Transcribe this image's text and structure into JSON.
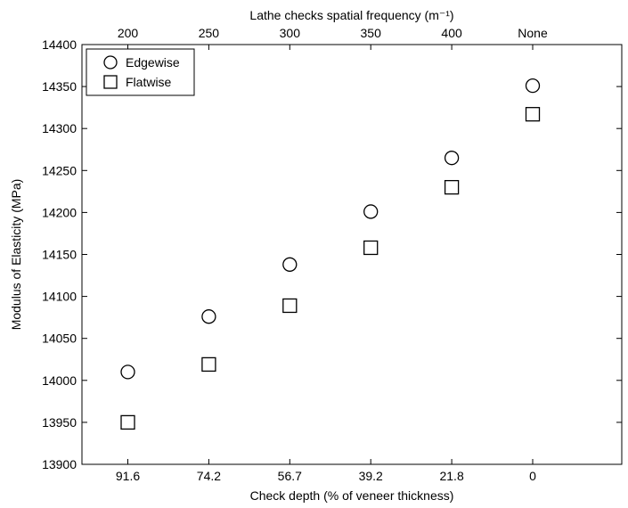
{
  "chart_data": {
    "type": "scatter",
    "xlabel": "Check depth (% of veneer thickness)",
    "x2label": "Lathe checks spatial frequency (m⁻¹)",
    "ylabel": "Modulus of Elasticity (MPa)",
    "categories": [
      "91.6",
      "74.2",
      "56.7",
      "39.2",
      "21.8",
      "0"
    ],
    "top_categories": [
      "200",
      "250",
      "300",
      "350",
      "400",
      "None"
    ],
    "ylim": [
      13900,
      14400
    ],
    "yticks": [
      13900,
      13950,
      14000,
      14050,
      14100,
      14150,
      14200,
      14250,
      14300,
      14350,
      14400
    ],
    "grid": false,
    "legend_position": "top-left",
    "series": [
      {
        "name": "Edgewise",
        "marker": "circle",
        "values": [
          14010,
          14076,
          14138,
          14201,
          14265,
          14351
        ]
      },
      {
        "name": "Flatwise",
        "marker": "square",
        "values": [
          13950,
          14019,
          14089,
          14158,
          14230,
          14317
        ]
      }
    ]
  }
}
